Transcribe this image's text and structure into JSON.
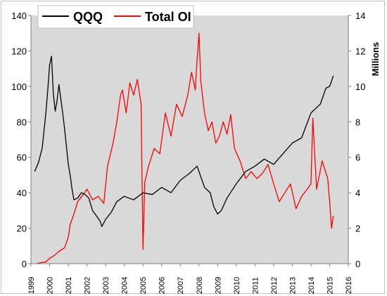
{
  "chart_data": {
    "type": "line",
    "title": "",
    "ylabel_left": "",
    "ylabel_right": "Millions",
    "xlabel": "",
    "x_ticks": [
      "1999",
      "2000",
      "2001",
      "2002",
      "2003",
      "2004",
      "2005",
      "2006",
      "2007",
      "2008",
      "2009",
      "2010",
      "2011",
      "2012",
      "2013",
      "2014",
      "2015",
      "2016"
    ],
    "xlim": [
      1999,
      2016
    ],
    "y_left_ticks": [
      "0",
      "20",
      "40",
      "60",
      "80",
      "100",
      "120",
      "140"
    ],
    "ylim_left": [
      0,
      140
    ],
    "y_right_ticks": [
      "0",
      "2",
      "4",
      "6",
      "8",
      "10",
      "12",
      "14"
    ],
    "ylim_right": [
      0,
      14
    ],
    "grid": false,
    "legend_position": "top-left",
    "series": [
      {
        "name": "QQQ",
        "axis": "left",
        "color": "#000000",
        "x": [
          1999.2,
          1999.4,
          1999.6,
          1999.8,
          1999.9,
          2000.0,
          2000.1,
          2000.2,
          2000.3,
          2000.4,
          2000.5,
          2000.6,
          2000.7,
          2000.8,
          2000.9,
          2001.0,
          2001.1,
          2001.2,
          2001.3,
          2001.5,
          2001.7,
          2001.9,
          2002.1,
          2002.3,
          2002.5,
          2002.7,
          2002.8,
          2003.0,
          2003.3,
          2003.6,
          2004.0,
          2004.5,
          2005.0,
          2005.5,
          2006.0,
          2006.5,
          2007.0,
          2007.5,
          2007.9,
          2008.3,
          2008.6,
          2008.8,
          2009.0,
          2009.2,
          2009.5,
          2010.0,
          2010.5,
          2011.0,
          2011.5,
          2012.0,
          2012.5,
          2013.0,
          2013.5,
          2014.0,
          2014.5,
          2014.8,
          2015.0,
          2015.2
        ],
        "y": [
          52,
          57,
          65,
          85,
          98,
          112,
          117,
          96,
          86,
          92,
          101,
          93,
          85,
          76,
          66,
          56,
          50,
          42,
          36,
          37,
          40,
          39,
          37,
          30,
          27,
          24,
          21,
          25,
          29,
          35,
          38,
          36,
          40,
          39,
          43,
          40,
          47,
          51,
          55,
          43,
          40,
          32,
          28,
          30,
          37,
          45,
          52,
          55,
          59,
          56,
          62,
          68,
          71,
          85,
          90,
          99,
          100,
          106
        ]
      },
      {
        "name": "Total OI",
        "axis": "right",
        "color": "#ff0000",
        "x": [
          1999.3,
          1999.5,
          1999.8,
          2000.0,
          2000.3,
          2000.5,
          2000.8,
          2001.0,
          2001.1,
          2001.3,
          2001.5,
          2001.8,
          2002.0,
          2002.3,
          2002.6,
          2002.9,
          2003.1,
          2003.4,
          2003.6,
          2003.8,
          2003.9,
          2004.1,
          2004.3,
          2004.5,
          2004.7,
          2004.9,
          2005.0,
          2005.1,
          2005.3,
          2005.6,
          2005.9,
          2006.2,
          2006.5,
          2006.8,
          2007.1,
          2007.4,
          2007.6,
          2007.8,
          2007.9,
          2008.0,
          2008.1,
          2008.3,
          2008.5,
          2008.7,
          2008.9,
          2009.1,
          2009.3,
          2009.5,
          2009.7,
          2009.9,
          2010.2,
          2010.5,
          2010.8,
          2011.1,
          2011.4,
          2011.7,
          2012.0,
          2012.3,
          2012.6,
          2012.9,
          2013.2,
          2013.5,
          2013.8,
          2014.0,
          2014.1,
          2014.3,
          2014.6,
          2014.9,
          2015.0,
          2015.1,
          2015.2
        ],
        "y": [
          0.0,
          0.05,
          0.1,
          0.3,
          0.5,
          0.7,
          0.9,
          1.5,
          2.2,
          2.8,
          3.5,
          3.9,
          4.2,
          3.6,
          3.8,
          3.4,
          5.5,
          6.8,
          8.0,
          9.5,
          9.8,
          8.5,
          10.2,
          9.5,
          10.4,
          9.0,
          0.8,
          4.6,
          5.5,
          6.5,
          6.2,
          8.5,
          7.2,
          9.0,
          8.3,
          9.5,
          10.8,
          9.8,
          11.5,
          13.0,
          10.3,
          8.5,
          7.5,
          8.0,
          6.8,
          7.2,
          8.0,
          7.3,
          8.4,
          6.5,
          5.8,
          4.8,
          5.2,
          4.8,
          5.1,
          5.6,
          4.5,
          3.5,
          4.0,
          4.5,
          3.1,
          3.8,
          4.2,
          4.5,
          8.2,
          4.2,
          5.8,
          4.8,
          3.5,
          2.0,
          2.7
        ]
      }
    ]
  }
}
